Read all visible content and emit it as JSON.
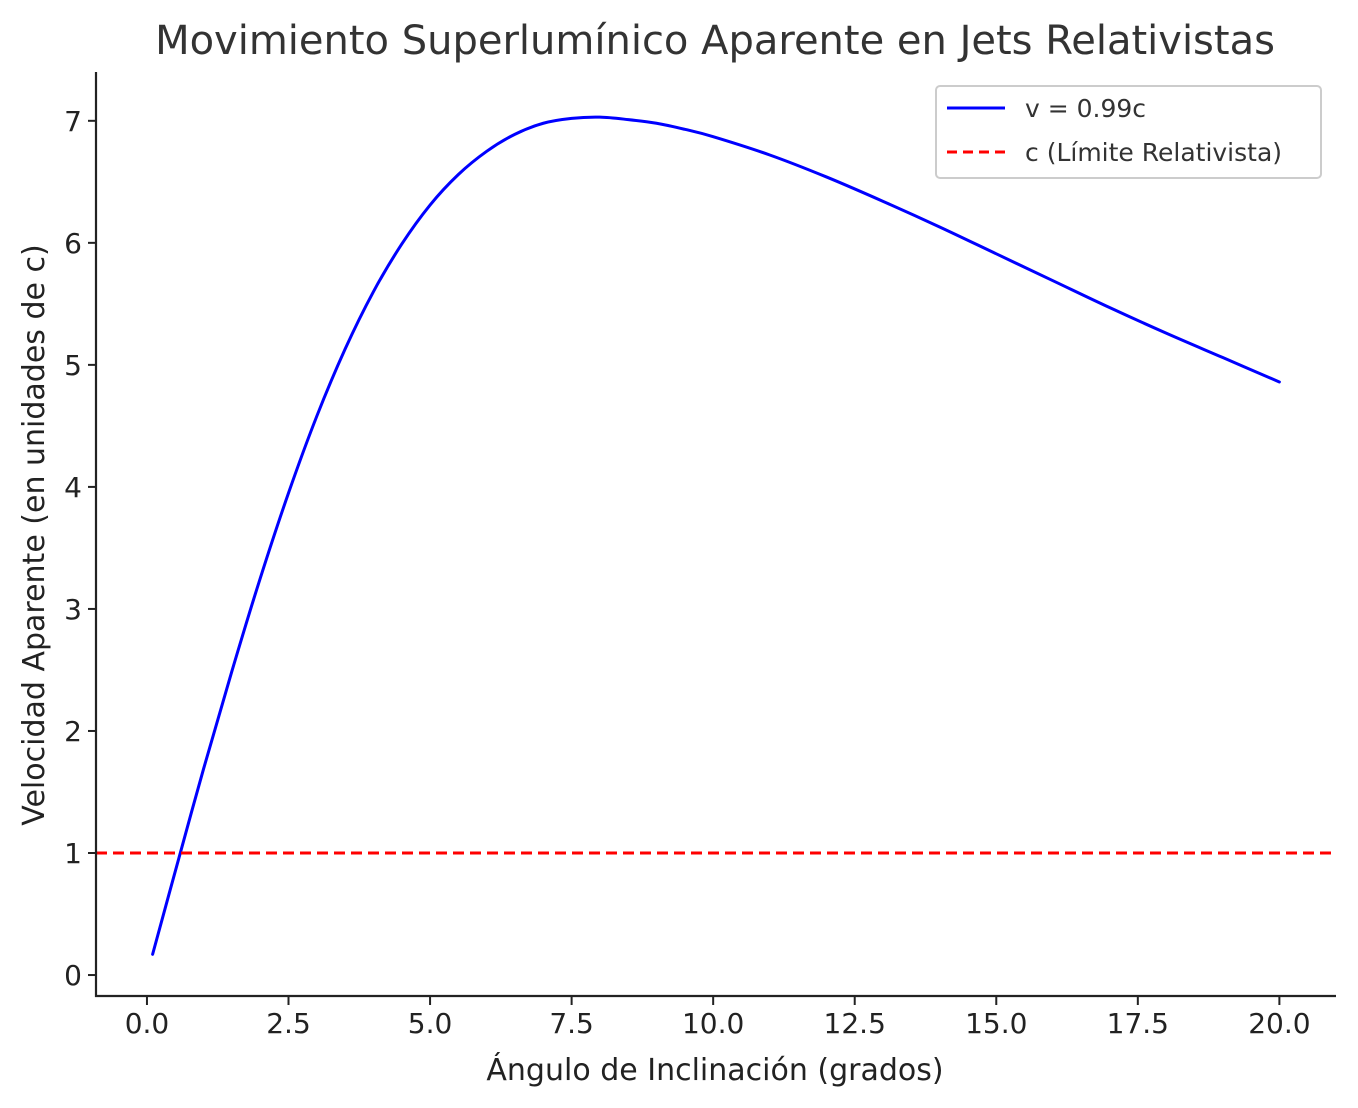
{
  "chart_data": {
    "type": "line",
    "title": "Movimiento Superlumínico Aparente en Jets Relativistas",
    "xlabel": "Ángulo de Inclinación (grados)",
    "ylabel": "Velocidad Aparente (en unidades de c)",
    "xlim": [
      -0.9,
      21.0
    ],
    "ylim": [
      -0.18,
      7.4
    ],
    "x_ticks": [
      0.0,
      2.5,
      5.0,
      7.5,
      10.0,
      12.5,
      15.0,
      17.5,
      20.0
    ],
    "x_tick_labels": [
      "0.0",
      "2.5",
      "5.0",
      "7.5",
      "10.0",
      "12.5",
      "15.0",
      "17.5",
      "20.0"
    ],
    "y_ticks": [
      0,
      1,
      2,
      3,
      4,
      5,
      6,
      7
    ],
    "y_tick_labels": [
      "0",
      "1",
      "2",
      "3",
      "4",
      "5",
      "6",
      "7"
    ],
    "grid": false,
    "legend_position": "top-right",
    "series": [
      {
        "name": "v = 0.99c",
        "color": "#0000ff",
        "style": "solid",
        "x": [
          0.1,
          0.5,
          1.0,
          1.5,
          2.0,
          2.5,
          3.0,
          3.5,
          4.0,
          4.5,
          5.0,
          5.5,
          6.0,
          6.5,
          7.0,
          7.5,
          8.0,
          8.5,
          9.0,
          9.5,
          10.0,
          11.0,
          12.0,
          13.0,
          14.0,
          15.0,
          16.0,
          17.0,
          18.0,
          19.0,
          20.0
        ],
        "y": [
          0.17,
          0.85,
          1.69,
          2.49,
          3.25,
          3.95,
          4.58,
          5.13,
          5.6,
          5.99,
          6.31,
          6.56,
          6.75,
          6.89,
          6.98,
          7.02,
          7.03,
          7.01,
          6.98,
          6.93,
          6.87,
          6.72,
          6.54,
          6.34,
          6.13,
          5.91,
          5.69,
          5.47,
          5.26,
          5.06,
          4.86
        ]
      },
      {
        "name": "c (Límite Relativista)",
        "color": "#ff0000",
        "style": "dashed",
        "y_constant": 1.0
      }
    ]
  }
}
